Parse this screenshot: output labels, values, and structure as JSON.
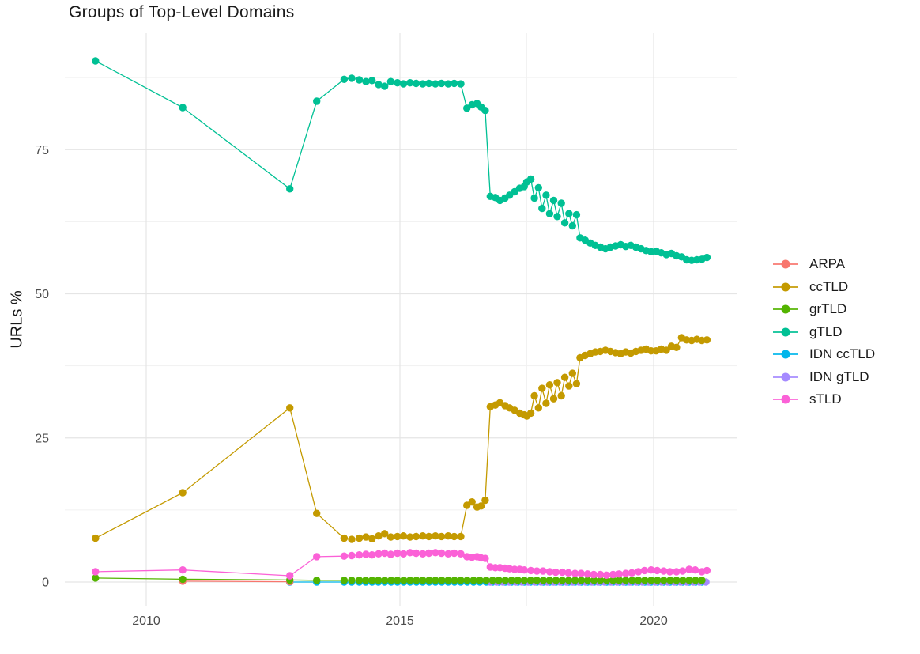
{
  "chart_data": {
    "type": "line",
    "title": "Groups of Top-Level Domains",
    "xlabel": "",
    "ylabel": "URLs %",
    "x_ticks": [
      2010,
      2015,
      2020
    ],
    "x_minor_ticks": [
      2012.5,
      2017.5
    ],
    "y_ticks": [
      0,
      25,
      50,
      75
    ],
    "y_minor_ticks": [
      12.5,
      37.5,
      62.5,
      87.5
    ],
    "xlim": [
      2008.4,
      2021.65
    ],
    "ylim": [
      -4.5,
      95
    ],
    "grid": true,
    "legend_position": "right",
    "series": [
      {
        "name": "ARPA",
        "color": "#F8766D",
        "z": 3,
        "points": [
          [
            2010.72,
            0.15
          ],
          [
            2012.83,
            0.05
          ]
        ]
      },
      {
        "name": "ccTLD",
        "color": "#C49A00",
        "z": 6,
        "points": [
          [
            2009.0,
            7.6
          ],
          [
            2010.72,
            15.5
          ],
          [
            2012.83,
            30.2
          ],
          [
            2013.36,
            11.9
          ],
          [
            2013.9,
            7.6
          ],
          [
            2014.05,
            7.4
          ],
          [
            2014.2,
            7.6
          ],
          [
            2014.33,
            7.8
          ],
          [
            2014.45,
            7.5
          ],
          [
            2014.58,
            8.0
          ],
          [
            2014.7,
            8.4
          ],
          [
            2014.82,
            7.8
          ],
          [
            2014.95,
            7.9
          ],
          [
            2015.07,
            8.0
          ],
          [
            2015.2,
            7.8
          ],
          [
            2015.32,
            7.9
          ],
          [
            2015.45,
            8.0
          ],
          [
            2015.57,
            7.9
          ],
          [
            2015.7,
            8.0
          ],
          [
            2015.82,
            7.9
          ],
          [
            2015.95,
            8.0
          ],
          [
            2016.07,
            7.9
          ],
          [
            2016.2,
            7.9
          ],
          [
            2016.32,
            13.3
          ],
          [
            2016.42,
            13.9
          ],
          [
            2016.52,
            13.0
          ],
          [
            2016.6,
            13.2
          ],
          [
            2016.68,
            14.2
          ],
          [
            2016.78,
            30.4
          ],
          [
            2016.88,
            30.7
          ],
          [
            2016.97,
            31.1
          ],
          [
            2017.07,
            30.6
          ],
          [
            2017.16,
            30.2
          ],
          [
            2017.26,
            29.8
          ],
          [
            2017.36,
            29.3
          ],
          [
            2017.45,
            29.0
          ],
          [
            2017.5,
            28.8
          ],
          [
            2017.58,
            29.3
          ],
          [
            2017.65,
            32.3
          ],
          [
            2017.73,
            30.2
          ],
          [
            2017.8,
            33.6
          ],
          [
            2017.88,
            31.0
          ],
          [
            2017.95,
            34.2
          ],
          [
            2018.03,
            31.8
          ],
          [
            2018.1,
            34.6
          ],
          [
            2018.18,
            32.3
          ],
          [
            2018.25,
            35.5
          ],
          [
            2018.33,
            34.0
          ],
          [
            2018.4,
            36.2
          ],
          [
            2018.48,
            34.4
          ],
          [
            2018.55,
            38.9
          ],
          [
            2018.65,
            39.3
          ],
          [
            2018.75,
            39.6
          ],
          [
            2018.85,
            39.9
          ],
          [
            2018.95,
            40.0
          ],
          [
            2019.05,
            40.2
          ],
          [
            2019.15,
            40.0
          ],
          [
            2019.25,
            39.8
          ],
          [
            2019.35,
            39.6
          ],
          [
            2019.45,
            39.9
          ],
          [
            2019.55,
            39.7
          ],
          [
            2019.65,
            40.0
          ],
          [
            2019.75,
            40.2
          ],
          [
            2019.85,
            40.4
          ],
          [
            2019.95,
            40.1
          ],
          [
            2020.05,
            40.1
          ],
          [
            2020.15,
            40.4
          ],
          [
            2020.25,
            40.2
          ],
          [
            2020.35,
            40.9
          ],
          [
            2020.45,
            40.7
          ],
          [
            2020.55,
            42.4
          ],
          [
            2020.65,
            42.0
          ],
          [
            2020.75,
            41.9
          ],
          [
            2020.85,
            42.1
          ],
          [
            2020.95,
            41.9
          ],
          [
            2021.05,
            42.0
          ]
        ]
      },
      {
        "name": "grTLD",
        "color": "#53B400",
        "z": 4,
        "points": [
          [
            2009.0,
            0.7
          ],
          [
            2010.72,
            0.5
          ],
          [
            2012.83,
            0.35
          ],
          [
            2013.36,
            0.3
          ],
          [
            2013.9,
            0.3
          ],
          [
            2014.05,
            0.3
          ]
        ],
        "fill": {
          "x_start": 2014.2,
          "x_end": 2021.05,
          "step": 0.125,
          "y": 0.3
        }
      },
      {
        "name": "gTLD",
        "color": "#00C094",
        "z": 5,
        "points": [
          [
            2009.0,
            90.4
          ],
          [
            2010.72,
            82.3
          ],
          [
            2012.83,
            68.2
          ],
          [
            2013.36,
            83.4
          ],
          [
            2013.9,
            87.2
          ],
          [
            2014.05,
            87.4
          ],
          [
            2014.2,
            87.1
          ],
          [
            2014.33,
            86.8
          ],
          [
            2014.45,
            87.0
          ],
          [
            2014.58,
            86.3
          ],
          [
            2014.7,
            86.0
          ],
          [
            2014.82,
            86.8
          ],
          [
            2014.95,
            86.6
          ],
          [
            2015.07,
            86.4
          ],
          [
            2015.2,
            86.6
          ],
          [
            2015.32,
            86.5
          ],
          [
            2015.45,
            86.4
          ],
          [
            2015.57,
            86.5
          ],
          [
            2015.7,
            86.4
          ],
          [
            2015.82,
            86.5
          ],
          [
            2015.95,
            86.4
          ],
          [
            2016.07,
            86.5
          ],
          [
            2016.2,
            86.4
          ],
          [
            2016.32,
            82.2
          ],
          [
            2016.42,
            82.8
          ],
          [
            2016.52,
            83.0
          ],
          [
            2016.6,
            82.4
          ],
          [
            2016.68,
            81.8
          ],
          [
            2016.78,
            66.9
          ],
          [
            2016.88,
            66.7
          ],
          [
            2016.97,
            66.2
          ],
          [
            2017.07,
            66.6
          ],
          [
            2017.16,
            67.1
          ],
          [
            2017.26,
            67.7
          ],
          [
            2017.36,
            68.3
          ],
          [
            2017.45,
            68.6
          ],
          [
            2017.5,
            69.4
          ],
          [
            2017.58,
            69.9
          ],
          [
            2017.65,
            66.6
          ],
          [
            2017.73,
            68.4
          ],
          [
            2017.8,
            64.8
          ],
          [
            2017.88,
            67.1
          ],
          [
            2017.95,
            63.9
          ],
          [
            2018.03,
            66.2
          ],
          [
            2018.1,
            63.4
          ],
          [
            2018.18,
            65.7
          ],
          [
            2018.25,
            62.3
          ],
          [
            2018.33,
            63.9
          ],
          [
            2018.4,
            61.8
          ],
          [
            2018.48,
            63.7
          ],
          [
            2018.55,
            59.7
          ],
          [
            2018.65,
            59.3
          ],
          [
            2018.75,
            58.8
          ],
          [
            2018.85,
            58.4
          ],
          [
            2018.95,
            58.1
          ],
          [
            2019.05,
            57.8
          ],
          [
            2019.15,
            58.1
          ],
          [
            2019.25,
            58.3
          ],
          [
            2019.35,
            58.5
          ],
          [
            2019.45,
            58.2
          ],
          [
            2019.55,
            58.4
          ],
          [
            2019.65,
            58.1
          ],
          [
            2019.75,
            57.8
          ],
          [
            2019.85,
            57.5
          ],
          [
            2019.95,
            57.3
          ],
          [
            2020.05,
            57.4
          ],
          [
            2020.15,
            57.1
          ],
          [
            2020.25,
            56.8
          ],
          [
            2020.35,
            57.0
          ],
          [
            2020.45,
            56.6
          ],
          [
            2020.55,
            56.4
          ],
          [
            2020.65,
            55.9
          ],
          [
            2020.75,
            55.8
          ],
          [
            2020.85,
            55.9
          ],
          [
            2020.95,
            56.0
          ],
          [
            2021.05,
            56.3
          ]
        ]
      },
      {
        "name": "IDN ccTLD",
        "color": "#00B6EB",
        "z": 1,
        "points": [
          [
            2012.83,
            0.0
          ],
          [
            2013.36,
            0.0
          ],
          [
            2013.9,
            0.0
          ],
          [
            2014.05,
            0.0
          ]
        ],
        "fill": {
          "x_start": 2014.2,
          "x_end": 2021.05,
          "step": 0.125,
          "y": 0.0
        }
      },
      {
        "name": "IDN gTLD",
        "color": "#A58AFF",
        "z": 2,
        "points": [],
        "fill": {
          "x_start": 2016.78,
          "x_end": 2021.05,
          "step": 0.125,
          "y": 0.0
        }
      },
      {
        "name": "sTLD",
        "color": "#FB61D7",
        "z": 7,
        "points": [
          [
            2009.0,
            1.8
          ],
          [
            2010.72,
            2.1
          ],
          [
            2012.83,
            1.1
          ],
          [
            2013.36,
            4.4
          ],
          [
            2013.9,
            4.5
          ],
          [
            2014.05,
            4.6
          ],
          [
            2014.2,
            4.7
          ],
          [
            2014.33,
            4.8
          ],
          [
            2014.45,
            4.7
          ],
          [
            2014.58,
            4.9
          ],
          [
            2014.7,
            5.0
          ],
          [
            2014.82,
            4.8
          ],
          [
            2014.95,
            5.0
          ],
          [
            2015.07,
            4.9
          ],
          [
            2015.2,
            5.1
          ],
          [
            2015.32,
            5.0
          ],
          [
            2015.45,
            4.9
          ],
          [
            2015.57,
            5.0
          ],
          [
            2015.7,
            5.1
          ],
          [
            2015.82,
            5.0
          ],
          [
            2015.95,
            4.9
          ],
          [
            2016.07,
            5.0
          ],
          [
            2016.2,
            4.9
          ],
          [
            2016.32,
            4.4
          ],
          [
            2016.42,
            4.3
          ],
          [
            2016.52,
            4.4
          ],
          [
            2016.6,
            4.2
          ],
          [
            2016.68,
            4.1
          ],
          [
            2016.78,
            2.6
          ],
          [
            2016.88,
            2.5
          ],
          [
            2016.97,
            2.5
          ],
          [
            2017.07,
            2.4
          ],
          [
            2017.16,
            2.3
          ],
          [
            2017.26,
            2.2
          ],
          [
            2017.36,
            2.2
          ],
          [
            2017.45,
            2.1
          ],
          [
            2017.58,
            2.0
          ],
          [
            2017.7,
            1.9
          ],
          [
            2017.82,
            1.9
          ],
          [
            2017.95,
            1.8
          ],
          [
            2018.07,
            1.7
          ],
          [
            2018.2,
            1.7
          ],
          [
            2018.32,
            1.6
          ],
          [
            2018.45,
            1.5
          ],
          [
            2018.57,
            1.5
          ],
          [
            2018.7,
            1.4
          ],
          [
            2018.82,
            1.3
          ],
          [
            2018.95,
            1.3
          ],
          [
            2019.07,
            1.2
          ],
          [
            2019.2,
            1.3
          ],
          [
            2019.32,
            1.4
          ],
          [
            2019.45,
            1.5
          ],
          [
            2019.57,
            1.6
          ],
          [
            2019.7,
            1.8
          ],
          [
            2019.82,
            2.0
          ],
          [
            2019.95,
            2.1
          ],
          [
            2020.07,
            2.0
          ],
          [
            2020.2,
            1.9
          ],
          [
            2020.32,
            1.8
          ],
          [
            2020.45,
            1.8
          ],
          [
            2020.57,
            1.9
          ],
          [
            2020.7,
            2.2
          ],
          [
            2020.82,
            2.1
          ],
          [
            2020.95,
            1.8
          ],
          [
            2021.05,
            2.0
          ]
        ]
      }
    ]
  }
}
